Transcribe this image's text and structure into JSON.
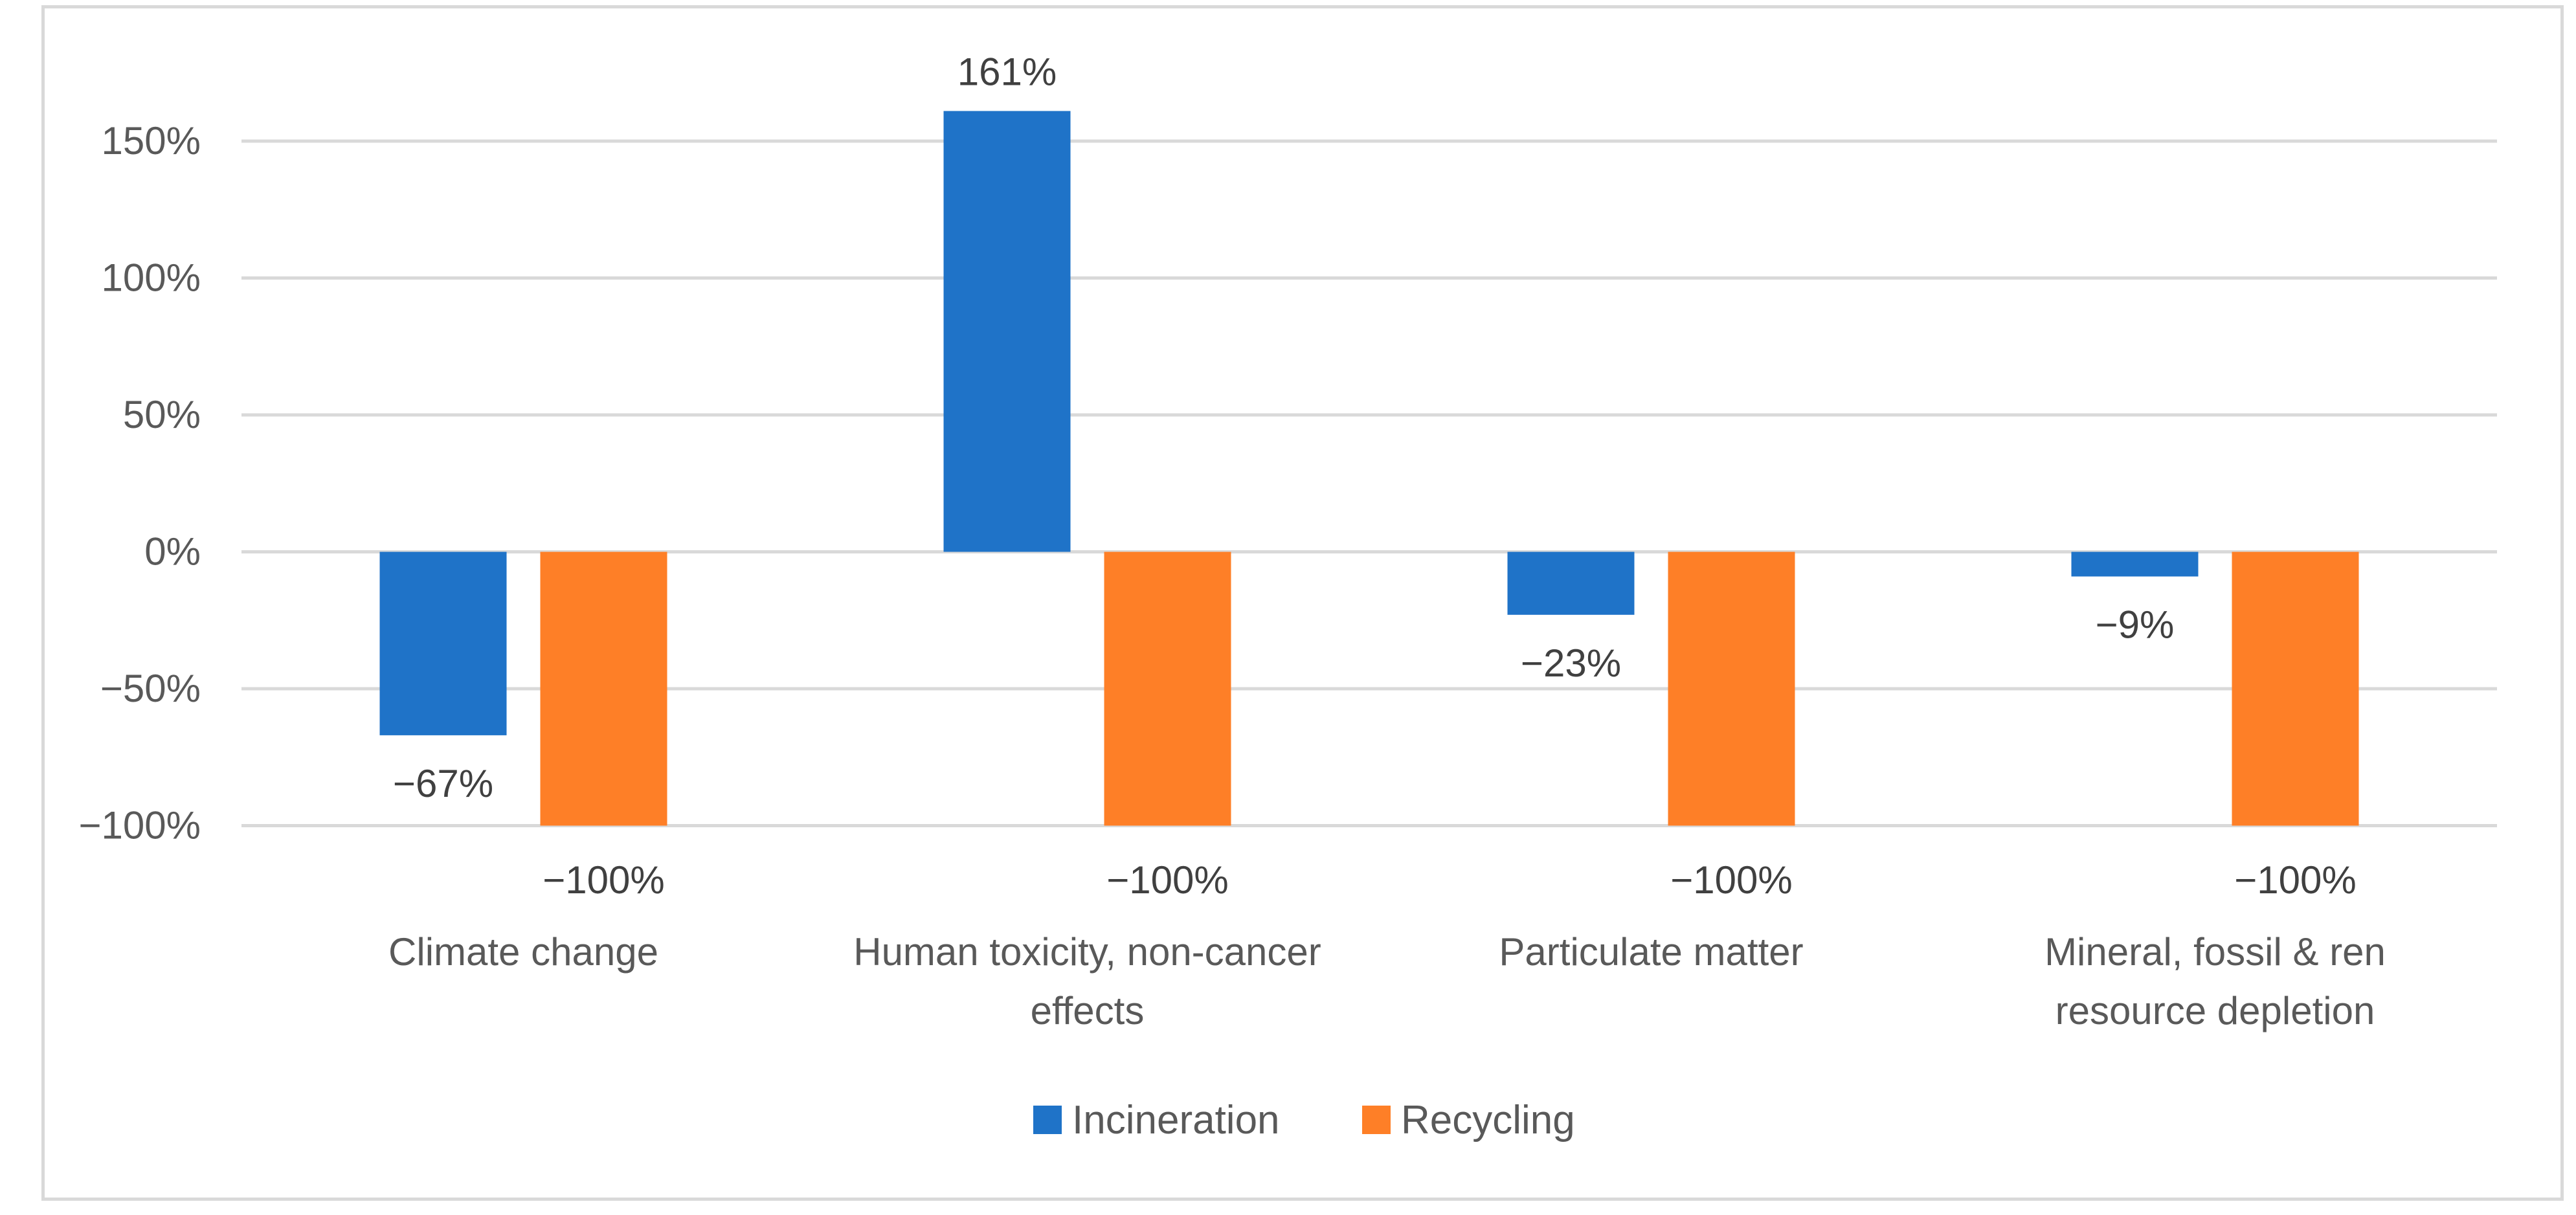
{
  "chart_data": {
    "type": "bar",
    "title": "",
    "xlabel": "",
    "ylabel": "",
    "categories": [
      [
        "Climate change"
      ],
      [
        "Human toxicity, non-cancer",
        "effects"
      ],
      [
        "Particulate matter"
      ],
      [
        "Mineral, fossil & ren",
        "resource depletion"
      ]
    ],
    "series": [
      {
        "name": "Incineration",
        "color": "#1f73c8",
        "values": [
          -67,
          161,
          -23,
          -9
        ],
        "labels": [
          "−67%",
          "161%",
          "−23%",
          "−9%"
        ]
      },
      {
        "name": "Recycling",
        "color": "#fe7f27",
        "values": [
          -100,
          -100,
          -100,
          -100
        ],
        "labels": [
          "−100%",
          "−100%",
          "−100%",
          "−100%"
        ]
      }
    ],
    "yticks": [
      150,
      100,
      50,
      0,
      -50,
      -100
    ],
    "ytick_labels": [
      "150%",
      "100%",
      "50%",
      "0%",
      "−50%",
      "−100%"
    ],
    "ylim": [
      -100,
      161
    ],
    "grid": true,
    "legend_position": "bottom"
  }
}
